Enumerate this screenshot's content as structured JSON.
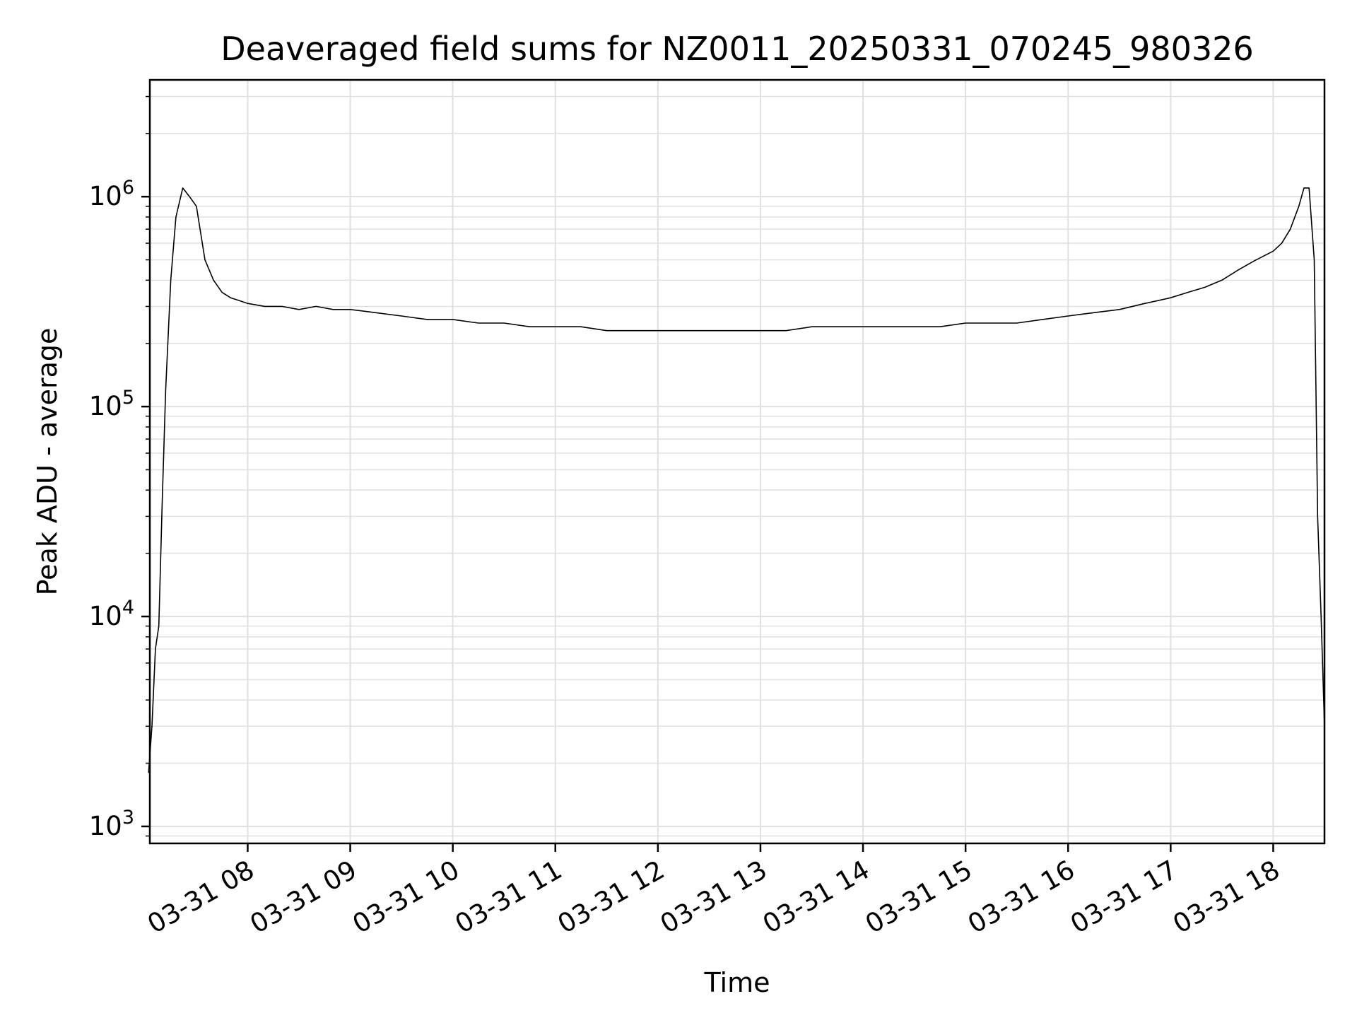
{
  "chart_data": {
    "type": "line",
    "title": "Deaveraged field sums for NZ0011_20250331_070245_980326",
    "xlabel": "Time",
    "ylabel": "Peak ADU - average",
    "yscale": "log",
    "grid": true,
    "line_color": "#000000",
    "grid_color": "#e0e0e0",
    "xlim": [
      "03-31 07:02:45",
      "03-31 18:30:00"
    ],
    "ylim": [
      830,
      3600000
    ],
    "x_ticks": [
      "03-31 08",
      "03-31 09",
      "03-31 10",
      "03-31 11",
      "03-31 12",
      "03-31 13",
      "03-31 14",
      "03-31 15",
      "03-31 16",
      "03-31 17",
      "03-31 18"
    ],
    "y_ticks": [
      {
        "base": "10",
        "exp": "3",
        "value": 1000
      },
      {
        "base": "10",
        "exp": "4",
        "value": 10000
      },
      {
        "base": "10",
        "exp": "5",
        "value": 100000
      },
      {
        "base": "10",
        "exp": "6",
        "value": 1000000
      }
    ],
    "series": [
      {
        "x": [
          "07:02",
          "07:04",
          "07:06",
          "07:08",
          "07:10",
          "07:12",
          "07:15",
          "07:18",
          "07:22",
          "07:26",
          "07:30",
          "07:35",
          "07:40",
          "07:45",
          "07:50",
          "07:55",
          "08:00",
          "08:10",
          "08:20",
          "08:30",
          "08:40",
          "08:50",
          "09:00",
          "09:15",
          "09:30",
          "09:45",
          "10:00",
          "10:15",
          "10:30",
          "10:45",
          "11:00",
          "11:15",
          "11:30",
          "11:45",
          "12:00",
          "12:15",
          "12:30",
          "12:45",
          "13:00",
          "13:15",
          "13:30",
          "13:45",
          "14:00",
          "14:15",
          "14:30",
          "14:45",
          "15:00",
          "15:15",
          "15:30",
          "15:45",
          "16:00",
          "16:15",
          "16:30",
          "16:45",
          "17:00",
          "17:10",
          "17:20",
          "17:30",
          "17:40",
          "17:50",
          "18:00",
          "18:05",
          "18:10",
          "18:15",
          "18:18",
          "18:21",
          "18:24",
          "18:26",
          "18:28",
          "18:30"
        ],
        "y": [
          1800,
          3000,
          7000,
          9000,
          35000,
          120000,
          400000,
          800000,
          1100000,
          1000000,
          900000,
          500000,
          400000,
          350000,
          330000,
          320000,
          310000,
          300000,
          300000,
          290000,
          300000,
          290000,
          290000,
          280000,
          270000,
          260000,
          260000,
          250000,
          250000,
          240000,
          240000,
          240000,
          230000,
          230000,
          230000,
          230000,
          230000,
          230000,
          230000,
          230000,
          240000,
          240000,
          240000,
          240000,
          240000,
          240000,
          250000,
          250000,
          250000,
          260000,
          270000,
          280000,
          290000,
          310000,
          330000,
          350000,
          370000,
          400000,
          450000,
          500000,
          550000,
          600000,
          700000,
          900000,
          1100000,
          1100000,
          500000,
          30000,
          10000,
          3000
        ]
      }
    ]
  }
}
